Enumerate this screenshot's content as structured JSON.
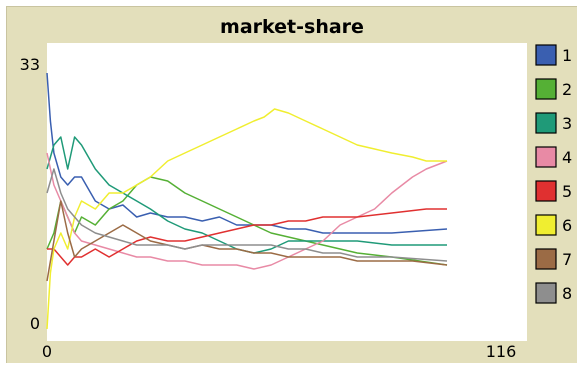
{
  "chart_data": {
    "type": "line",
    "title": "market-share",
    "xlabel": "",
    "ylabel": "",
    "xlim": [
      0,
      116
    ],
    "ylim": [
      0,
      33
    ],
    "x_tick_labels": [
      "0",
      "116"
    ],
    "y_tick_labels": [
      "0",
      "33"
    ],
    "grid": false,
    "legend_position": "right",
    "series": [
      {
        "name": "1",
        "color": "#3a5fb0",
        "points": [
          [
            0,
            32
          ],
          [
            1,
            26
          ],
          [
            2,
            22
          ],
          [
            4,
            19
          ],
          [
            6,
            18
          ],
          [
            8,
            19
          ],
          [
            10,
            19
          ],
          [
            14,
            16
          ],
          [
            18,
            15
          ],
          [
            22,
            15.5
          ],
          [
            26,
            14
          ],
          [
            30,
            14.5
          ],
          [
            35,
            14
          ],
          [
            40,
            14
          ],
          [
            45,
            13.5
          ],
          [
            50,
            14
          ],
          [
            55,
            13
          ],
          [
            60,
            13
          ],
          [
            65,
            13
          ],
          [
            70,
            12.5
          ],
          [
            75,
            12.5
          ],
          [
            80,
            12
          ],
          [
            90,
            12
          ],
          [
            100,
            12
          ],
          [
            116,
            12.5
          ]
        ]
      },
      {
        "name": "2",
        "color": "#55b035",
        "points": [
          [
            0,
            10
          ],
          [
            2,
            12
          ],
          [
            4,
            16
          ],
          [
            6,
            14
          ],
          [
            8,
            12
          ],
          [
            10,
            14
          ],
          [
            14,
            13
          ],
          [
            18,
            15
          ],
          [
            22,
            16
          ],
          [
            26,
            18
          ],
          [
            30,
            19
          ],
          [
            35,
            18.5
          ],
          [
            40,
            17
          ],
          [
            45,
            16
          ],
          [
            50,
            15
          ],
          [
            55,
            14
          ],
          [
            60,
            13
          ],
          [
            65,
            12
          ],
          [
            70,
            11.5
          ],
          [
            75,
            11
          ],
          [
            80,
            10.5
          ],
          [
            90,
            9.5
          ],
          [
            100,
            9
          ],
          [
            108,
            8.5
          ],
          [
            116,
            8
          ]
        ]
      },
      {
        "name": "3",
        "color": "#1f9a78",
        "points": [
          [
            0,
            20
          ],
          [
            2,
            23
          ],
          [
            4,
            24
          ],
          [
            6,
            20
          ],
          [
            8,
            24
          ],
          [
            10,
            23
          ],
          [
            14,
            20
          ],
          [
            18,
            18
          ],
          [
            22,
            17
          ],
          [
            26,
            16
          ],
          [
            30,
            15
          ],
          [
            35,
            13.5
          ],
          [
            40,
            12.5
          ],
          [
            45,
            12
          ],
          [
            50,
            11
          ],
          [
            55,
            10
          ],
          [
            60,
            9.5
          ],
          [
            65,
            10
          ],
          [
            70,
            11
          ],
          [
            75,
            11
          ],
          [
            80,
            11
          ],
          [
            90,
            11
          ],
          [
            100,
            10.5
          ],
          [
            116,
            10.5
          ]
        ]
      },
      {
        "name": "4",
        "color": "#e88aa5",
        "points": [
          [
            0,
            22
          ],
          [
            2,
            18
          ],
          [
            4,
            16
          ],
          [
            6,
            14
          ],
          [
            8,
            12
          ],
          [
            10,
            11
          ],
          [
            14,
            10.5
          ],
          [
            18,
            10
          ],
          [
            22,
            9.5
          ],
          [
            26,
            9
          ],
          [
            30,
            9
          ],
          [
            35,
            8.5
          ],
          [
            40,
            8.5
          ],
          [
            45,
            8
          ],
          [
            50,
            8
          ],
          [
            55,
            8
          ],
          [
            60,
            7.5
          ],
          [
            65,
            8
          ],
          [
            70,
            9
          ],
          [
            75,
            10
          ],
          [
            80,
            11
          ],
          [
            85,
            13
          ],
          [
            90,
            14
          ],
          [
            95,
            15
          ],
          [
            100,
            17
          ],
          [
            106,
            19
          ],
          [
            110,
            20
          ],
          [
            116,
            21
          ]
        ]
      },
      {
        "name": "5",
        "color": "#e03030",
        "points": [
          [
            0,
            10
          ],
          [
            2,
            10
          ],
          [
            4,
            9
          ],
          [
            6,
            8
          ],
          [
            8,
            9
          ],
          [
            10,
            9
          ],
          [
            14,
            10
          ],
          [
            18,
            9
          ],
          [
            22,
            10
          ],
          [
            26,
            11
          ],
          [
            30,
            11.5
          ],
          [
            35,
            11
          ],
          [
            40,
            11
          ],
          [
            45,
            11.5
          ],
          [
            50,
            12
          ],
          [
            55,
            12.5
          ],
          [
            60,
            13
          ],
          [
            65,
            13
          ],
          [
            70,
            13.5
          ],
          [
            75,
            13.5
          ],
          [
            80,
            14
          ],
          [
            90,
            14
          ],
          [
            100,
            14.5
          ],
          [
            110,
            15
          ],
          [
            116,
            15
          ]
        ]
      },
      {
        "name": "6",
        "color": "#f0ee30",
        "points": [
          [
            0,
            0
          ],
          [
            1,
            7
          ],
          [
            2,
            10
          ],
          [
            4,
            12
          ],
          [
            6,
            10
          ],
          [
            8,
            14
          ],
          [
            10,
            16
          ],
          [
            14,
            15
          ],
          [
            18,
            17
          ],
          [
            22,
            17
          ],
          [
            26,
            18
          ],
          [
            30,
            19
          ],
          [
            35,
            21
          ],
          [
            40,
            22
          ],
          [
            45,
            23
          ],
          [
            50,
            24
          ],
          [
            55,
            25
          ],
          [
            60,
            26
          ],
          [
            63,
            26.5
          ],
          [
            66,
            27.5
          ],
          [
            70,
            27
          ],
          [
            75,
            26
          ],
          [
            80,
            25
          ],
          [
            85,
            24
          ],
          [
            90,
            23
          ],
          [
            95,
            22.5
          ],
          [
            100,
            22
          ],
          [
            106,
            21.5
          ],
          [
            110,
            21
          ],
          [
            116,
            21
          ]
        ]
      },
      {
        "name": "7",
        "color": "#9b6b45",
        "points": [
          [
            0,
            6
          ],
          [
            2,
            11
          ],
          [
            4,
            16
          ],
          [
            6,
            12
          ],
          [
            8,
            9
          ],
          [
            10,
            10
          ],
          [
            14,
            11
          ],
          [
            18,
            12
          ],
          [
            22,
            13
          ],
          [
            26,
            12
          ],
          [
            30,
            11
          ],
          [
            35,
            10.5
          ],
          [
            40,
            10
          ],
          [
            45,
            10.5
          ],
          [
            50,
            10
          ],
          [
            55,
            10
          ],
          [
            60,
            9.5
          ],
          [
            65,
            9.5
          ],
          [
            70,
            9
          ],
          [
            75,
            9
          ],
          [
            80,
            9
          ],
          [
            85,
            9
          ],
          [
            90,
            8.5
          ],
          [
            95,
            8.5
          ],
          [
            100,
            8.5
          ],
          [
            106,
            8.5
          ],
          [
            116,
            8
          ]
        ]
      },
      {
        "name": "8",
        "color": "#8e8e8e",
        "points": [
          [
            0,
            17
          ],
          [
            2,
            20
          ],
          [
            4,
            17
          ],
          [
            6,
            15
          ],
          [
            8,
            14
          ],
          [
            10,
            13
          ],
          [
            14,
            12
          ],
          [
            18,
            11.5
          ],
          [
            22,
            11
          ],
          [
            26,
            10.5
          ],
          [
            30,
            10.5
          ],
          [
            35,
            10.5
          ],
          [
            40,
            10
          ],
          [
            45,
            10.5
          ],
          [
            50,
            10.5
          ],
          [
            55,
            10.5
          ],
          [
            60,
            10.5
          ],
          [
            65,
            10.5
          ],
          [
            70,
            10
          ],
          [
            75,
            10
          ],
          [
            80,
            9.5
          ],
          [
            85,
            9.5
          ],
          [
            90,
            9
          ],
          [
            100,
            9
          ],
          [
            116,
            8.5
          ]
        ]
      }
    ]
  }
}
